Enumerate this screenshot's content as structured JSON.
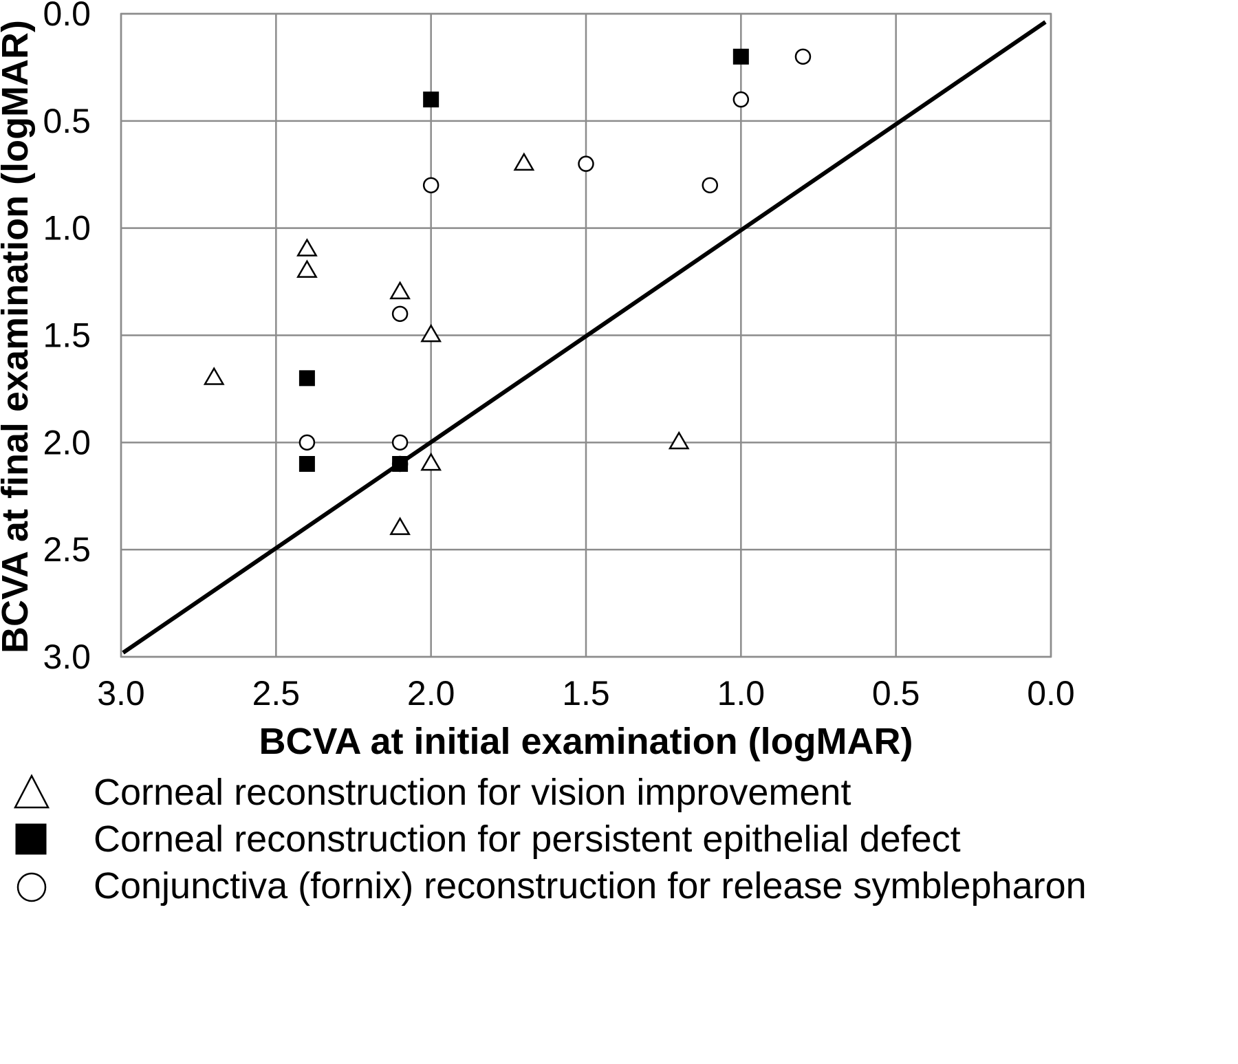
{
  "chart_data": {
    "type": "scatter",
    "title": "",
    "xlabel": "BCVA at initial examination (logMAR)",
    "ylabel": "BCVA at final examination (logMAR)",
    "xlim": [
      3.0,
      0.0
    ],
    "ylim": [
      3.0,
      0.0
    ],
    "x_axis_reversed": true,
    "y_axis_reversed": true,
    "x_ticks": [
      "3.0",
      "2.5",
      "2.0",
      "1.5",
      "1.0",
      "0.5",
      "0.0"
    ],
    "y_ticks": [
      "0.0",
      "0.5",
      "1.0",
      "1.5",
      "2.0",
      "2.5",
      "3.0"
    ],
    "grid": true,
    "reference_line": {
      "from": [
        3.0,
        3.0
      ],
      "to": [
        0.0,
        0.0
      ],
      "color": "#000000"
    },
    "legend_position": "bottom",
    "series": [
      {
        "name": "Corneal reconstruction for vision improvement",
        "marker": "triangle-open",
        "points": [
          {
            "x": 2.7,
            "y": 1.7
          },
          {
            "x": 2.4,
            "y": 1.1
          },
          {
            "x": 2.4,
            "y": 1.2
          },
          {
            "x": 2.1,
            "y": 1.3
          },
          {
            "x": 2.0,
            "y": 1.5
          },
          {
            "x": 1.7,
            "y": 0.7
          },
          {
            "x": 2.0,
            "y": 2.1
          },
          {
            "x": 2.1,
            "y": 2.4
          },
          {
            "x": 1.2,
            "y": 2.0
          }
        ]
      },
      {
        "name": "Corneal reconstruction for persistent epithelial defect",
        "marker": "square-filled",
        "points": [
          {
            "x": 2.0,
            "y": 0.4
          },
          {
            "x": 1.0,
            "y": 0.2
          },
          {
            "x": 2.4,
            "y": 1.7
          },
          {
            "x": 2.4,
            "y": 2.1
          },
          {
            "x": 2.1,
            "y": 2.1
          }
        ]
      },
      {
        "name": "Conjunctiva (fornix) reconstruction for release symblepharon",
        "marker": "circle-open",
        "points": [
          {
            "x": 0.8,
            "y": 0.2
          },
          {
            "x": 1.0,
            "y": 0.4
          },
          {
            "x": 1.5,
            "y": 0.7
          },
          {
            "x": 2.0,
            "y": 0.8
          },
          {
            "x": 1.1,
            "y": 0.8
          },
          {
            "x": 2.1,
            "y": 1.4
          },
          {
            "x": 2.4,
            "y": 2.0
          },
          {
            "x": 2.1,
            "y": 2.0
          },
          {
            "x": 2.1,
            "y": 2.1
          }
        ]
      }
    ]
  }
}
